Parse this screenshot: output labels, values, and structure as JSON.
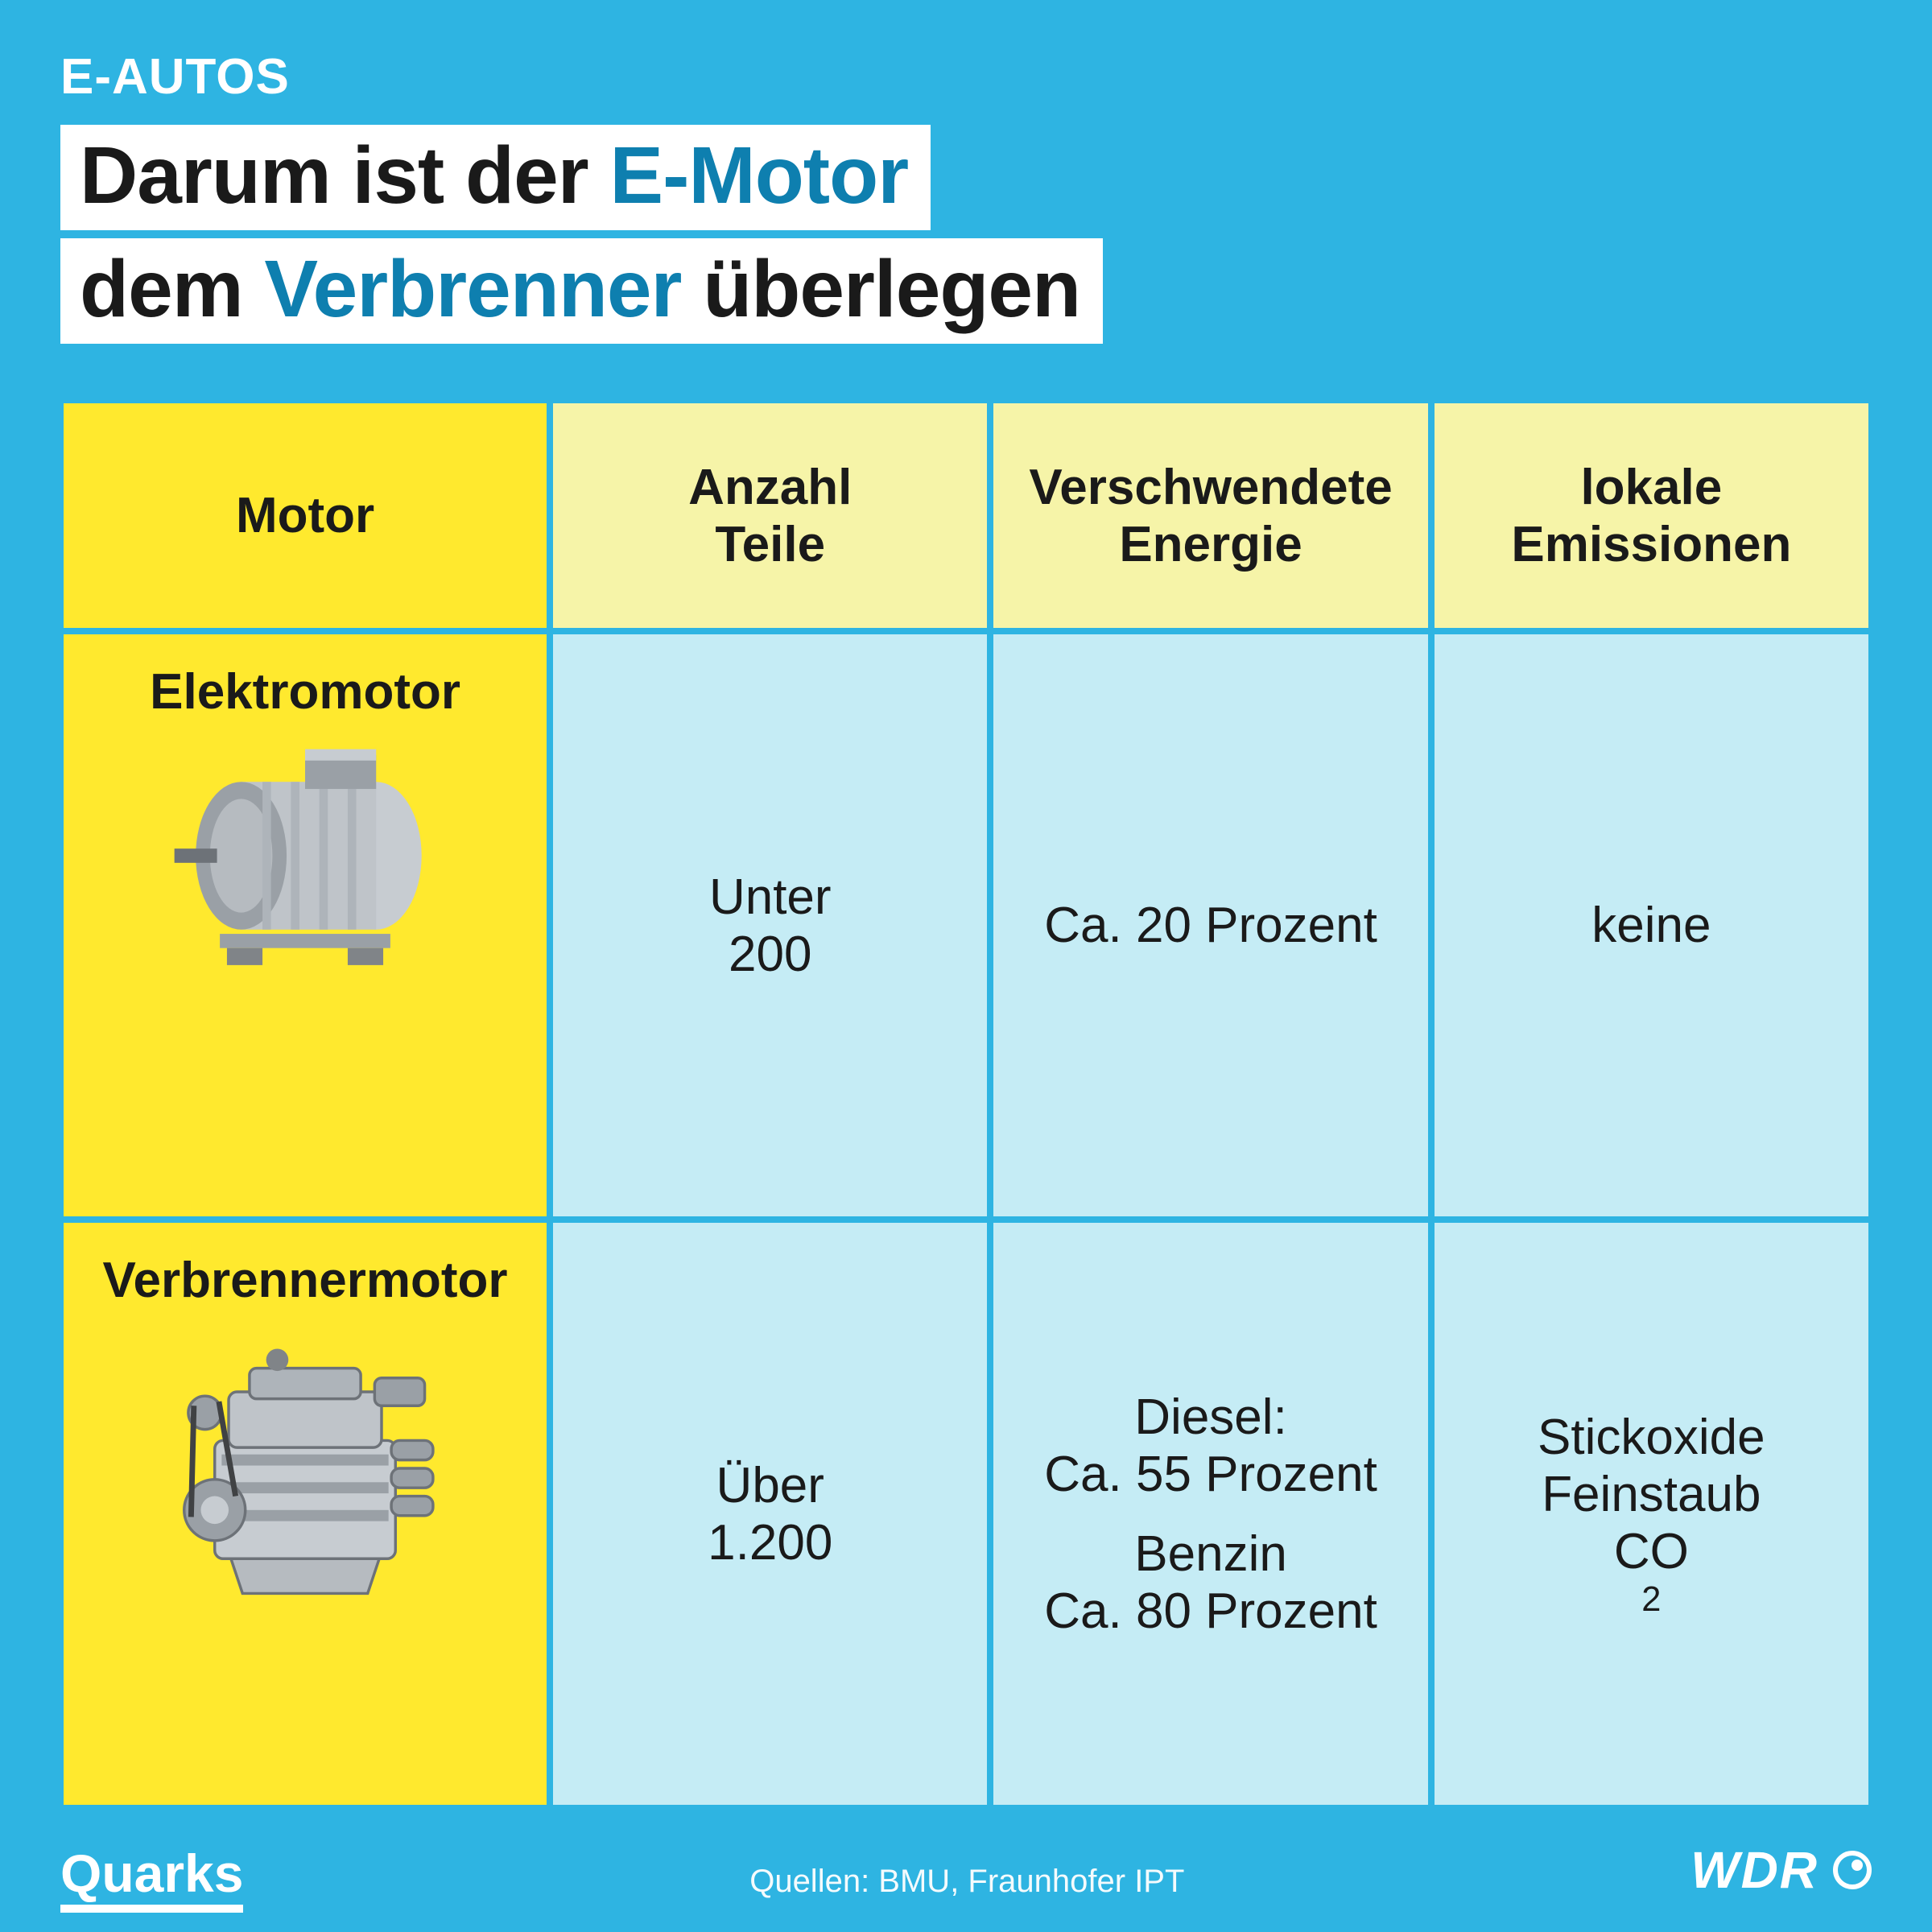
{
  "colors": {
    "background": "#2eb4e2",
    "accent": "#0e7faf",
    "border": "#2eb4e2",
    "th_bg": "#f6f4a8",
    "th_first_bg": "#ffe92e",
    "rowhead_bg": "#ffe92e",
    "cell_bg": "#c5ecf5",
    "text_dark": "#1a1a1a",
    "text_light": "#ffffff"
  },
  "header": {
    "category": "E-AUTOS",
    "headline_line1_parts": [
      {
        "text": "Darum ist der ",
        "style": "dark"
      },
      {
        "text": "E-Motor",
        "style": "accent"
      }
    ],
    "headline_line2_parts": [
      {
        "text": "dem ",
        "style": "dark"
      },
      {
        "text": "Verbrenner",
        "style": "accent"
      },
      {
        "text": " überlegen",
        "style": "dark"
      }
    ]
  },
  "table": {
    "columns": [
      "Motor",
      "Anzahl\nTeile",
      "Verschwendete\nEnergie",
      "lokale\nEmissionen"
    ],
    "rows": [
      {
        "name": "Elektromotor",
        "icon": "electric-motor",
        "parts": "Unter\n200",
        "wasted": [
          "Ca. 20 Prozent"
        ],
        "emissions": [
          "keine"
        ]
      },
      {
        "name": "Verbrennermotor",
        "icon": "combustion-engine",
        "parts": "Über\n1.200",
        "wasted": [
          "Diesel:\nCa. 55 Prozent",
          "Benzin\nCa. 80 Prozent"
        ],
        "emissions": [
          "Stickoxide\nFeinstaub\nCO₂"
        ]
      }
    ]
  },
  "footer": {
    "brand_left": "Quarks",
    "sources": "Quellen: BMU, Fraunhofer IPT",
    "brand_right": "WDR"
  }
}
